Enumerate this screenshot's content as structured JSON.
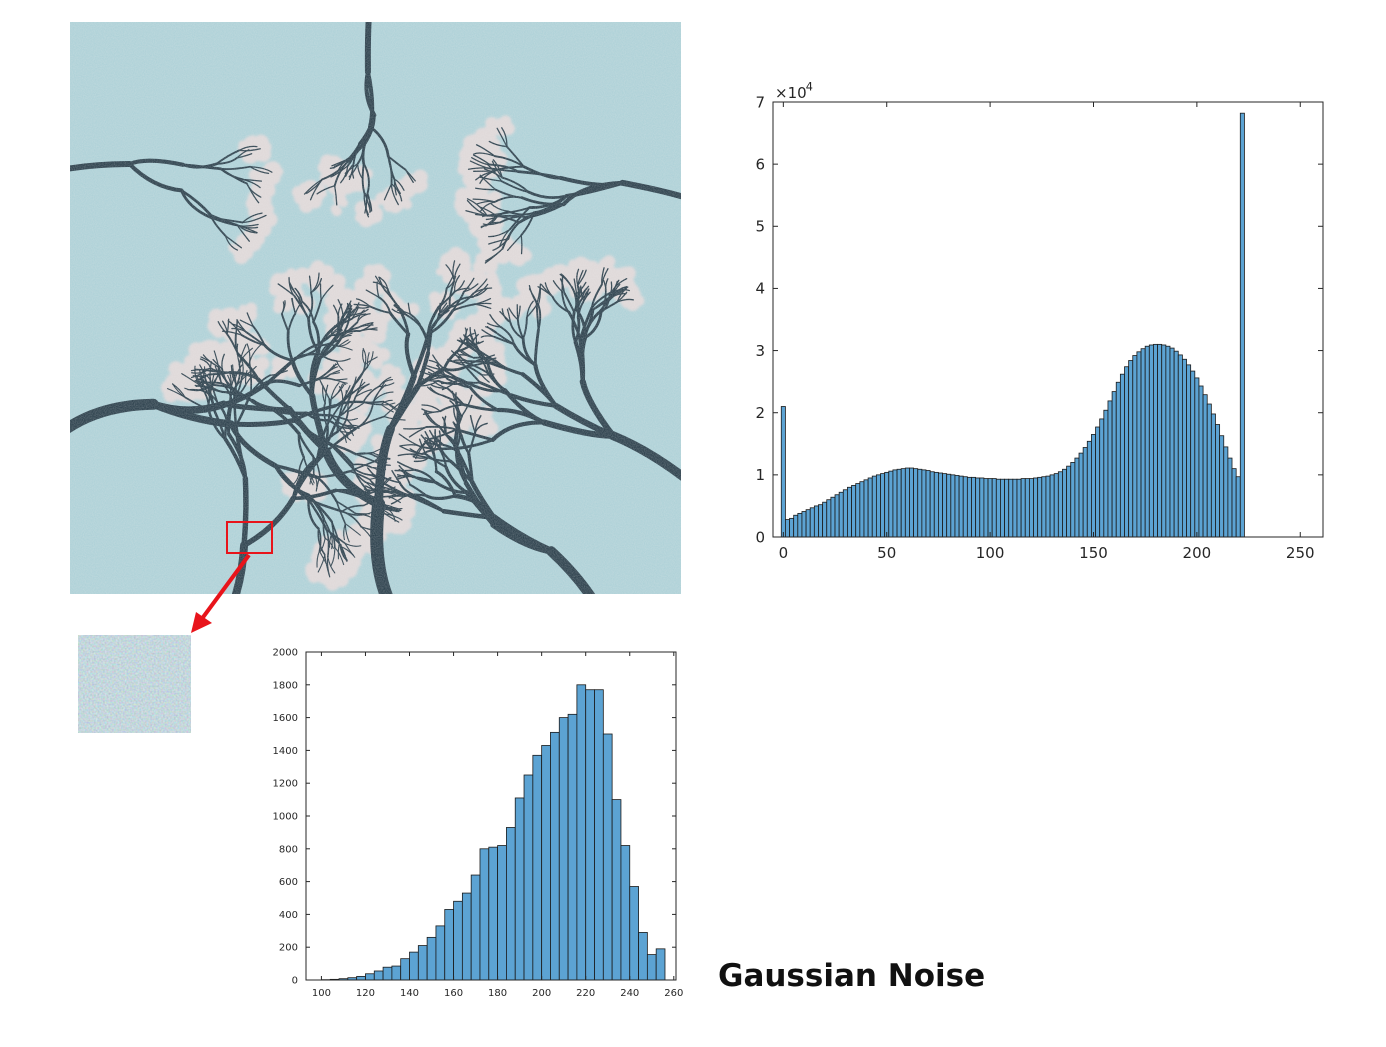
{
  "caption": "Gaussian Noise",
  "colors": {
    "bar_fill": "#5ca3d3",
    "bar_edge": "#1a1a1a",
    "sky": "#a9cfd6",
    "branch": "#1d3340",
    "blossom": "#e4d8d8",
    "highlight_box": "#e8141b",
    "arrow": "#e8141b"
  },
  "photo": {
    "description_icon": "magnolia-branches-photo-icon",
    "highlight": "red-rectangle-highlight",
    "arrow": "red-arrow-icon",
    "patch": "zoomed-noise-patch-icon"
  },
  "chart_data": [
    {
      "type": "bar",
      "title": "",
      "xlabel": "",
      "ylabel": "",
      "exponent_label": "×10",
      "exponent_power": "4",
      "xlim": [
        -5,
        261
      ],
      "ylim": [
        0,
        7
      ],
      "xticks": [
        0,
        50,
        100,
        150,
        200,
        250
      ],
      "yticks": [
        0,
        1,
        2,
        3,
        4,
        5,
        6,
        7
      ],
      "bin_width": 2,
      "x": [
        0,
        2,
        4,
        6,
        8,
        10,
        12,
        14,
        16,
        18,
        20,
        22,
        24,
        26,
        28,
        30,
        32,
        34,
        36,
        38,
        40,
        42,
        44,
        46,
        48,
        50,
        52,
        54,
        56,
        58,
        60,
        62,
        64,
        66,
        68,
        70,
        72,
        74,
        76,
        78,
        80,
        82,
        84,
        86,
        88,
        90,
        92,
        94,
        96,
        98,
        100,
        102,
        104,
        106,
        108,
        110,
        112,
        114,
        116,
        118,
        120,
        122,
        124,
        126,
        128,
        130,
        132,
        134,
        136,
        138,
        140,
        142,
        144,
        146,
        148,
        150,
        152,
        154,
        156,
        158,
        160,
        162,
        164,
        166,
        168,
        170,
        172,
        174,
        176,
        178,
        180,
        182,
        184,
        186,
        188,
        190,
        192,
        194,
        196,
        198,
        200,
        202,
        204,
        206,
        208,
        210,
        212,
        214,
        216,
        218,
        220,
        222,
        224,
        226,
        228,
        230,
        232,
        234,
        236,
        238,
        240,
        242,
        244,
        246,
        248,
        250,
        252,
        254
      ],
      "values": [
        2.1,
        0.28,
        0.3,
        0.35,
        0.38,
        0.41,
        0.44,
        0.47,
        0.5,
        0.52,
        0.56,
        0.6,
        0.64,
        0.68,
        0.72,
        0.76,
        0.8,
        0.83,
        0.86,
        0.89,
        0.92,
        0.95,
        0.98,
        1.0,
        1.02,
        1.04,
        1.06,
        1.08,
        1.09,
        1.1,
        1.11,
        1.11,
        1.1,
        1.09,
        1.08,
        1.07,
        1.05,
        1.04,
        1.03,
        1.02,
        1.01,
        1.0,
        0.99,
        0.98,
        0.97,
        0.96,
        0.96,
        0.95,
        0.95,
        0.94,
        0.94,
        0.94,
        0.93,
        0.93,
        0.93,
        0.93,
        0.93,
        0.93,
        0.94,
        0.94,
        0.94,
        0.95,
        0.96,
        0.97,
        0.98,
        1.0,
        1.02,
        1.05,
        1.09,
        1.14,
        1.2,
        1.27,
        1.35,
        1.44,
        1.54,
        1.65,
        1.77,
        1.9,
        2.04,
        2.19,
        2.34,
        2.49,
        2.62,
        2.74,
        2.84,
        2.92,
        2.98,
        3.03,
        3.07,
        3.09,
        3.1,
        3.1,
        3.09,
        3.07,
        3.04,
        2.99,
        2.93,
        2.86,
        2.77,
        2.67,
        2.56,
        2.43,
        2.29,
        2.14,
        1.98,
        1.81,
        1.63,
        1.45,
        1.27,
        1.1,
        0.97,
        6.82,
        0,
        0,
        0,
        0,
        0,
        0,
        0,
        0,
        0,
        0,
        0,
        0,
        0,
        0,
        0,
        0
      ]
    },
    {
      "type": "bar",
      "title": "",
      "xlabel": "",
      "ylabel": "",
      "xlim": [
        93,
        261
      ],
      "ylim": [
        0,
        2000
      ],
      "xticks": [
        100,
        120,
        140,
        160,
        180,
        200,
        220,
        240,
        260
      ],
      "yticks": [
        0,
        200,
        400,
        600,
        800,
        1000,
        1200,
        1400,
        1600,
        1800,
        2000
      ],
      "bin_width": 4,
      "x": [
        102,
        106,
        110,
        114,
        118,
        122,
        126,
        130,
        134,
        138,
        142,
        146,
        150,
        154,
        158,
        162,
        166,
        170,
        174,
        178,
        182,
        186,
        190,
        194,
        198,
        202,
        206,
        210,
        214,
        218,
        222,
        226,
        230,
        234,
        238,
        242,
        246,
        250,
        254
      ],
      "values": [
        2,
        4,
        8,
        14,
        22,
        38,
        55,
        78,
        85,
        130,
        170,
        210,
        260,
        330,
        430,
        480,
        530,
        640,
        800,
        810,
        820,
        930,
        1110,
        1250,
        1370,
        1430,
        1510,
        1600,
        1620,
        1800,
        1770,
        1770,
        1500,
        1100,
        820,
        570,
        290,
        155,
        190
      ]
    }
  ]
}
